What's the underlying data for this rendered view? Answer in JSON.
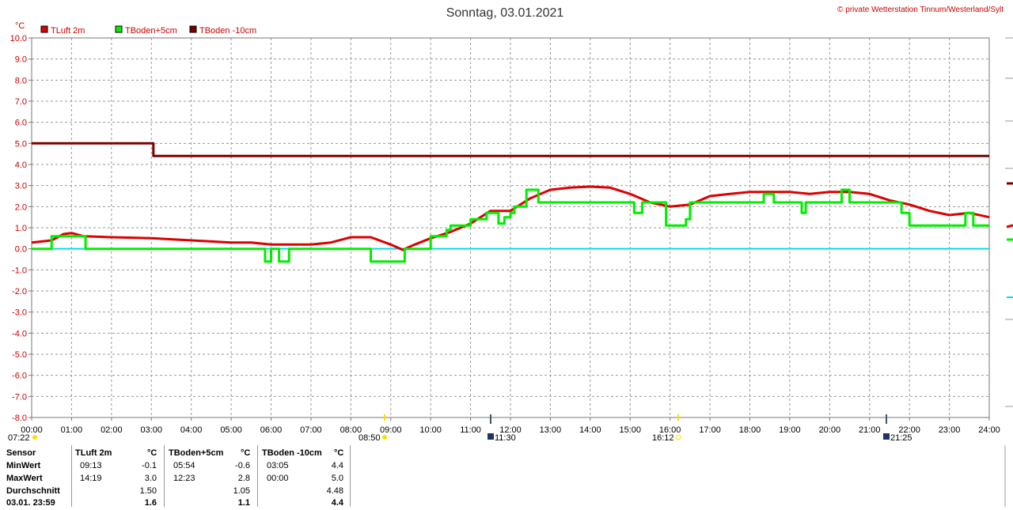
{
  "title": "Sonntag, 03.01.2021",
  "credit": "© private Wetterstation Tinnum/Westerland/Sylt",
  "unit": "°C",
  "legend": [
    {
      "label": "TLuft 2m",
      "color": "#dd0000"
    },
    {
      "label": "TBoden+5cm",
      "color": "#00ee00"
    },
    {
      "label": "TBoden -10cm",
      "color": "#7a0000"
    }
  ],
  "events": {
    "sunrise": "07:22",
    "noon_label": "11:30",
    "sunset": "16:12",
    "moon_label": "21:25",
    "marker_0850": "08:50"
  },
  "chart_data": {
    "type": "line",
    "title": "Sonntag, 03.01.2021",
    "ylabel": "°C",
    "xlim": [
      0,
      24
    ],
    "ylim": [
      -8,
      10
    ],
    "grid": true,
    "legend_placement": "top-left",
    "x_ticks": [
      "00:00",
      "01:00",
      "02:00",
      "03:00",
      "04:00",
      "05:00",
      "06:00",
      "07:00",
      "08:00",
      "09:00",
      "10:00",
      "11:00",
      "12:00",
      "13:00",
      "14:00",
      "15:00",
      "16:00",
      "17:00",
      "18:00",
      "19:00",
      "20:00",
      "21:00",
      "22:00",
      "23:00",
      "24:00"
    ],
    "y_ticks": [
      "10.0",
      "9.0",
      "8.0",
      "7.0",
      "6.0",
      "5.0",
      "4.0",
      "3.0",
      "2.0",
      "1.0",
      "0.0",
      "-1.0",
      "-2.0",
      "-3.0",
      "-4.0",
      "-5.0",
      "-6.0",
      "-7.0",
      "-8.0"
    ],
    "reference_line": {
      "y": 0,
      "color": "#00e0e0"
    },
    "series": [
      {
        "name": "TLuft 2m",
        "color": "#dd0000",
        "step": false,
        "points": [
          [
            0,
            0.3
          ],
          [
            0.5,
            0.4
          ],
          [
            0.8,
            0.7
          ],
          [
            1.0,
            0.75
          ],
          [
            1.3,
            0.6
          ],
          [
            2.0,
            0.55
          ],
          [
            3.0,
            0.5
          ],
          [
            4.0,
            0.4
          ],
          [
            5.0,
            0.3
          ],
          [
            5.5,
            0.3
          ],
          [
            6.0,
            0.2
          ],
          [
            7.0,
            0.2
          ],
          [
            7.5,
            0.3
          ],
          [
            7.8,
            0.45
          ],
          [
            8.0,
            0.55
          ],
          [
            8.5,
            0.55
          ],
          [
            9.0,
            0.2
          ],
          [
            9.3,
            -0.05
          ],
          [
            9.6,
            0.2
          ],
          [
            10.0,
            0.5
          ],
          [
            10.5,
            0.8
          ],
          [
            11.0,
            1.2
          ],
          [
            11.5,
            1.8
          ],
          [
            12.0,
            1.8
          ],
          [
            12.5,
            2.4
          ],
          [
            13.0,
            2.8
          ],
          [
            13.5,
            2.9
          ],
          [
            14.0,
            2.95
          ],
          [
            14.5,
            2.9
          ],
          [
            15.0,
            2.6
          ],
          [
            15.5,
            2.2
          ],
          [
            16.0,
            2.0
          ],
          [
            16.5,
            2.1
          ],
          [
            17.0,
            2.5
          ],
          [
            17.5,
            2.6
          ],
          [
            18.0,
            2.7
          ],
          [
            18.5,
            2.7
          ],
          [
            19.0,
            2.7
          ],
          [
            19.5,
            2.6
          ],
          [
            20.0,
            2.7
          ],
          [
            20.5,
            2.7
          ],
          [
            21.0,
            2.6
          ],
          [
            21.5,
            2.3
          ],
          [
            22.0,
            2.1
          ],
          [
            22.5,
            1.8
          ],
          [
            23.0,
            1.6
          ],
          [
            23.5,
            1.7
          ],
          [
            24.0,
            1.5
          ]
        ]
      },
      {
        "name": "TBoden+5cm",
        "color": "#00ee00",
        "step": true,
        "points": [
          [
            0,
            0.0
          ],
          [
            0.5,
            0.6
          ],
          [
            1.35,
            0.0
          ],
          [
            5.85,
            -0.6
          ],
          [
            6.0,
            0.0
          ],
          [
            6.2,
            -0.6
          ],
          [
            6.45,
            0.0
          ],
          [
            8.5,
            -0.6
          ],
          [
            9.35,
            0.0
          ],
          [
            10.0,
            0.6
          ],
          [
            10.4,
            0.9
          ],
          [
            10.5,
            1.1
          ],
          [
            11.0,
            1.1
          ],
          [
            11.0,
            1.4
          ],
          [
            11.4,
            1.7
          ],
          [
            11.6,
            1.7
          ],
          [
            11.7,
            1.2
          ],
          [
            11.85,
            1.5
          ],
          [
            12.0,
            1.7
          ],
          [
            12.1,
            2.0
          ],
          [
            12.4,
            2.8
          ],
          [
            12.7,
            2.2
          ],
          [
            15.1,
            1.7
          ],
          [
            15.3,
            2.2
          ],
          [
            15.9,
            1.1
          ],
          [
            16.4,
            1.4
          ],
          [
            16.5,
            2.2
          ],
          [
            18.35,
            2.6
          ],
          [
            18.6,
            2.2
          ],
          [
            19.3,
            1.7
          ],
          [
            19.4,
            2.2
          ],
          [
            20.3,
            2.8
          ],
          [
            20.5,
            2.2
          ],
          [
            21.8,
            1.7
          ],
          [
            22.0,
            1.1
          ],
          [
            23.4,
            1.7
          ],
          [
            23.6,
            1.1
          ],
          [
            24.0,
            1.1
          ]
        ]
      },
      {
        "name": "TBoden -10cm",
        "color": "#7a0000",
        "step": true,
        "points": [
          [
            0,
            5.0
          ],
          [
            3.05,
            4.4
          ],
          [
            24.0,
            4.4
          ]
        ]
      }
    ]
  },
  "stats": {
    "header": {
      "sensor": "Sensor",
      "s1": "TLuft 2m",
      "u1": "°C",
      "s2": "TBoden+5cm",
      "u2": "°C",
      "s3": "TBoden -10cm",
      "u3": "°C"
    },
    "rows": [
      {
        "label": "MinWert",
        "t1": "09:13",
        "v1": "-0.1",
        "t2": "05:54",
        "v2": "-0.6",
        "t3": "03:05",
        "v3": "4.4"
      },
      {
        "label": "MaxWert",
        "t1": "14:19",
        "v1": "3.0",
        "t2": "12:23",
        "v2": "2.8",
        "t3": "00:00",
        "v3": "5.0"
      },
      {
        "label": "Durchschnitt",
        "t1": "",
        "v1": "1.50",
        "t2": "",
        "v2": "1.05",
        "t3": "",
        "v3": "4.48"
      },
      {
        "label": "03.01. 23:59",
        "t1": "",
        "v1": "1.6",
        "t2": "",
        "v2": "1.1",
        "t3": "",
        "v3": "4.4"
      }
    ]
  }
}
